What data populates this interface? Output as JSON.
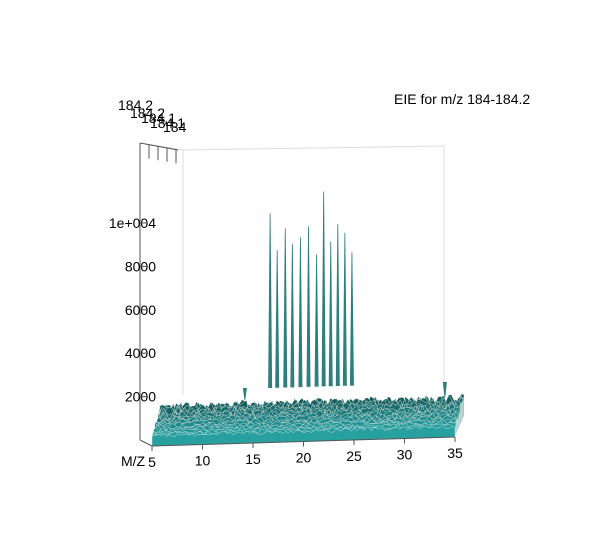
{
  "chart_data": {
    "type": "area",
    "title": "EIE for m/z 184-184.2",
    "x_axis": {
      "label": "M/Z",
      "range": [
        5,
        35
      ],
      "ticks": [
        "5",
        "10",
        "15",
        "20",
        "25",
        "30",
        "35"
      ]
    },
    "y_axis": {
      "label": "",
      "range": [
        0,
        12000
      ],
      "ticks": [
        "2000",
        "4000",
        "6000",
        "8000",
        "1e+004"
      ]
    },
    "z_axis": {
      "label": "",
      "ticks": [
        "184.2",
        "184.2",
        "184.1",
        "184.1",
        "184"
      ]
    },
    "grid": false,
    "series_color": "#2f7f7f",
    "baseline_level": 1500,
    "peaks": [
      {
        "x": 16.3,
        "y": 11000
      },
      {
        "x": 17.0,
        "y": 9300
      },
      {
        "x": 17.8,
        "y": 10300
      },
      {
        "x": 18.5,
        "y": 9600
      },
      {
        "x": 19.3,
        "y": 9900
      },
      {
        "x": 20.1,
        "y": 10400
      },
      {
        "x": 20.9,
        "y": 9100
      },
      {
        "x": 21.6,
        "y": 12000
      },
      {
        "x": 22.3,
        "y": 9700
      },
      {
        "x": 23.0,
        "y": 10500
      },
      {
        "x": 23.7,
        "y": 10100
      },
      {
        "x": 24.4,
        "y": 9200
      },
      {
        "x": 13.8,
        "y": 2400
      },
      {
        "x": 33.6,
        "y": 2500
      }
    ]
  }
}
